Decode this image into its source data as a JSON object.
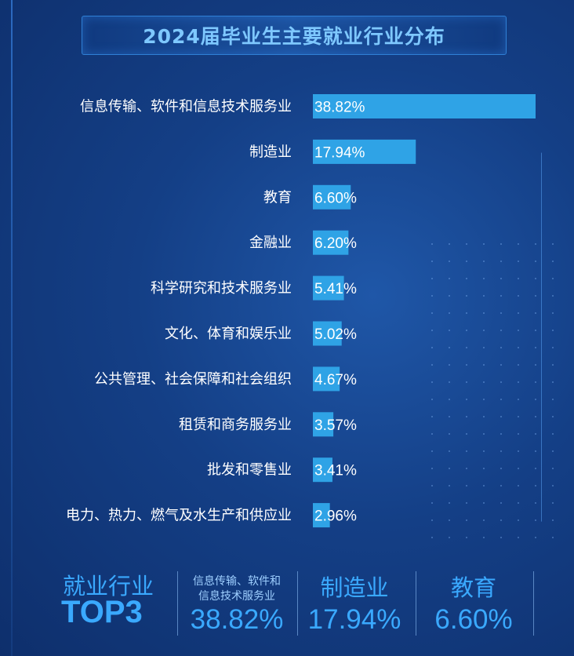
{
  "chart_data": {
    "type": "bar",
    "orientation": "horizontal",
    "title": "2024届毕业生主要就业行业分布",
    "categories": [
      "信息传输、软件和信息技术服务业",
      "制造业",
      "教育",
      "金融业",
      "科学研究和技术服务业",
      "文化、体育和娱乐业",
      "公共管理、社会保障和社会组织",
      "租赁和商务服务业",
      "批发和零售业",
      "电力、热力、燃气及水生产和供应业"
    ],
    "values": [
      38.82,
      17.94,
      6.6,
      6.2,
      5.41,
      5.02,
      4.67,
      3.57,
      3.41,
      2.96
    ],
    "value_labels": [
      "38.82%",
      "17.94%",
      "6.60%",
      "6.20%",
      "5.41%",
      "5.02%",
      "4.67%",
      "3.57%",
      "3.41%",
      "2.96%"
    ],
    "unit": "%",
    "bar_color": "#2fa3e6",
    "grid": false,
    "legend": "none"
  },
  "colors": {
    "background": "#143f86",
    "accent": "#3aa9ff",
    "title_text": "#7ec8ff",
    "bar": "#2fa3e6"
  },
  "top3": {
    "heading": "就业行业",
    "badge": "TOP3",
    "items": [
      {
        "label": "信息传输、软件和\n信息技术服务业",
        "value": "38.82%"
      },
      {
        "label": "制造业",
        "value": "17.94%"
      },
      {
        "label": "教育",
        "value": "6.60%"
      }
    ]
  }
}
